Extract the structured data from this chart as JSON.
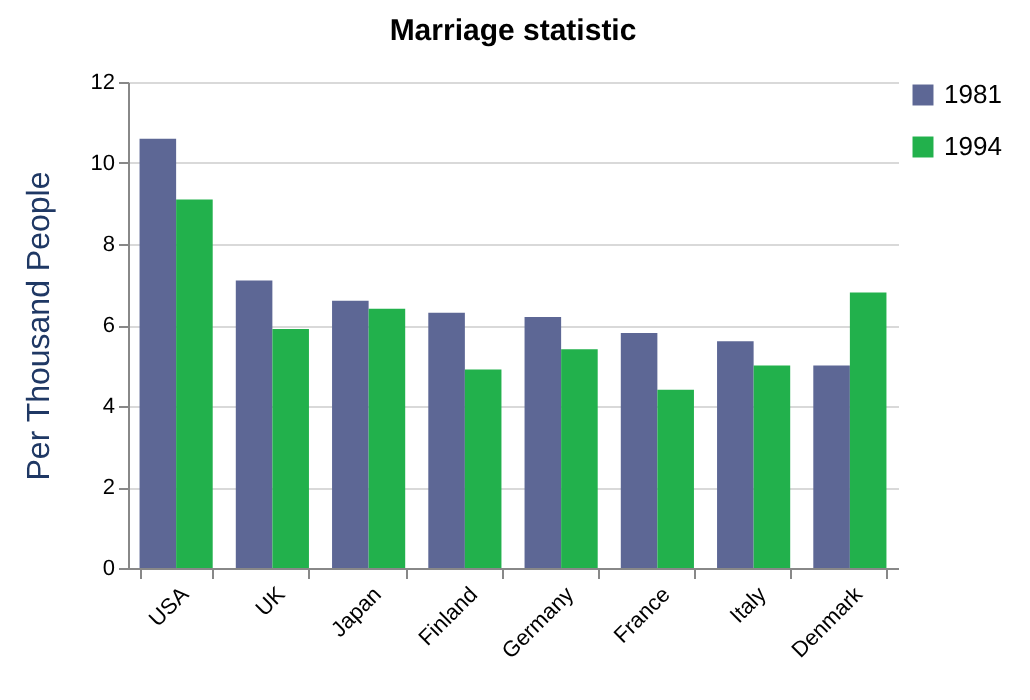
{
  "chart_data": {
    "type": "bar",
    "title": "Marriage statistic",
    "ylabel": "Per Thousand People",
    "categories": [
      "USA",
      "UK",
      "Japan",
      "Finland",
      "Germany",
      "France",
      "Italy",
      "Denmark"
    ],
    "series": [
      {
        "name": "1981",
        "color": "#5d6795",
        "values": [
          10.6,
          7.1,
          6.6,
          6.3,
          6.2,
          5.8,
          5.6,
          5.0
        ]
      },
      {
        "name": "1994",
        "color": "#22b14c",
        "values": [
          9.1,
          5.9,
          6.4,
          4.9,
          5.4,
          4.4,
          5.0,
          6.8
        ]
      }
    ],
    "ylim": [
      0,
      12
    ],
    "yticks": [
      0,
      2,
      4,
      6,
      8,
      10,
      12
    ],
    "grid": "y",
    "legend": "right"
  }
}
